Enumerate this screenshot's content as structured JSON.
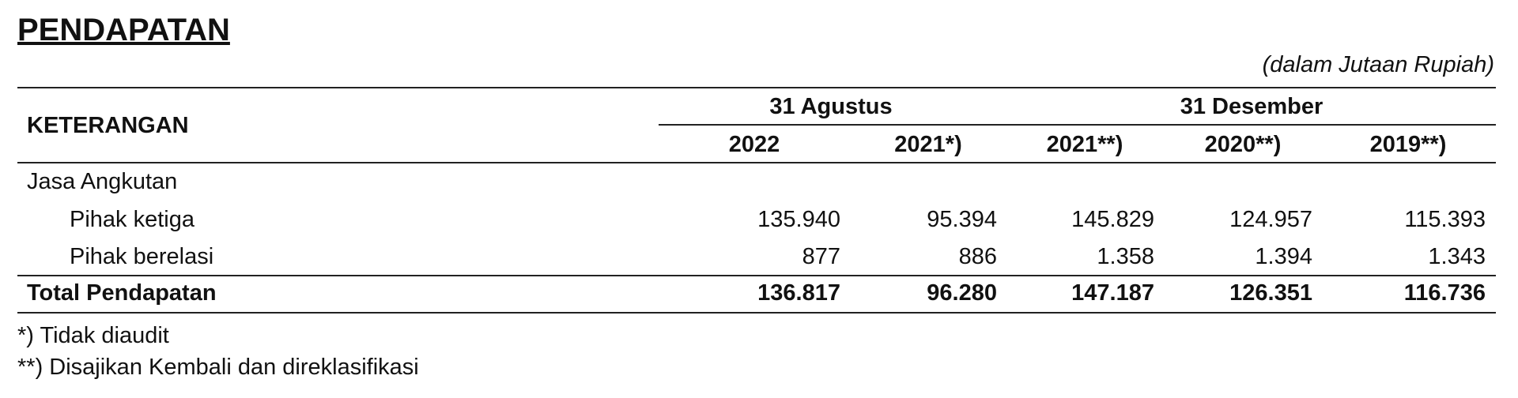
{
  "header": {
    "title": "PENDAPATAN",
    "unit": "(dalam Jutaan Rupiah)"
  },
  "table": {
    "key_header": "KETERANGAN",
    "groups": [
      "31 Agustus",
      "31 Desember"
    ],
    "years": [
      "2022",
      "2021*)",
      "2021**)",
      "2020**)",
      "2019**)"
    ],
    "rows": [
      {
        "label": "Jasa Angkutan",
        "values": [
          null,
          null,
          null,
          null,
          null
        ]
      },
      {
        "label": "Pihak ketiga",
        "values": [
          "135.940",
          "95.394",
          "145.829",
          "124.957",
          "115.393"
        ]
      },
      {
        "label": "Pihak berelasi",
        "values": [
          "877",
          "886",
          "1.358",
          "1.394",
          "1.343"
        ]
      },
      {
        "label": "Total Pendapatan",
        "values": [
          "136.817",
          "96.280",
          "147.187",
          "126.351",
          "116.736"
        ]
      }
    ]
  },
  "footnotes": [
    "*) Tidak diaudit",
    "**) Disajikan Kembali dan direklasifikasi"
  ]
}
